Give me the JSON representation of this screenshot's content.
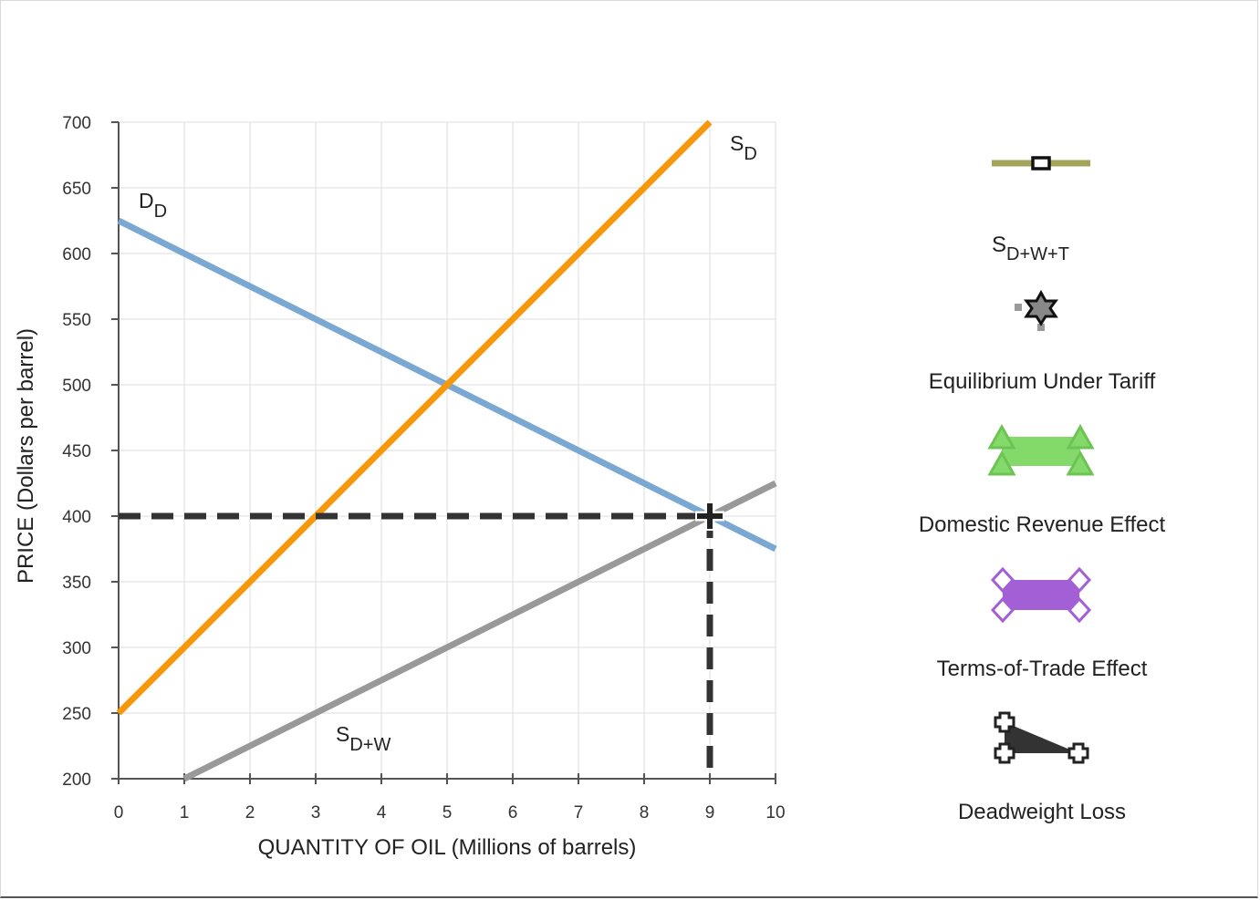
{
  "chart_data": {
    "type": "line",
    "xlabel": "QUANTITY OF OIL (Millions of barrels)",
    "ylabel": "PRICE (Dollars per barrel)",
    "xlim": [
      0,
      10
    ],
    "ylim": [
      200,
      700
    ],
    "xticks": [
      "0",
      "1",
      "2",
      "3",
      "4",
      "5",
      "6",
      "7",
      "8",
      "9",
      "10"
    ],
    "yticks": [
      "200",
      "250",
      "300",
      "350",
      "400",
      "450",
      "500",
      "550",
      "600",
      "650",
      "700"
    ],
    "grid": true,
    "series": [
      {
        "name": "D",
        "sub": "D",
        "color": "#7ba7d3",
        "x": [
          0,
          10
        ],
        "y": [
          625,
          375
        ]
      },
      {
        "name": "S",
        "sub": "D",
        "color": "#f5980a",
        "x": [
          0,
          9
        ],
        "y": [
          250,
          700
        ]
      },
      {
        "name": "S",
        "sub": "D+W",
        "color": "#999999",
        "x": [
          1,
          10
        ],
        "y": [
          200,
          425
        ]
      }
    ],
    "dashed_lines": {
      "color": "#333333",
      "price_level": 400,
      "quantity_level": 9
    },
    "equilibrium_point": {
      "x": 9,
      "y": 400
    }
  },
  "legend": {
    "items": [
      {
        "label": "S",
        "sub": "D+W+T",
        "marker": "olive-line-with-square",
        "color": "#a3a35a"
      },
      {
        "label": "Equilibrium Under Tariff",
        "marker": "star-icon",
        "color": "#333333"
      },
      {
        "label": "Domestic Revenue Effect",
        "marker": "green-polygon-triangles",
        "color": "#84d96b"
      },
      {
        "label": "Terms-of-Trade Effect",
        "marker": "purple-polygon-diamonds",
        "color": "#a35fd6"
      },
      {
        "label": "Deadweight Loss",
        "marker": "black-triangle-crosses",
        "color": "#333333"
      }
    ]
  }
}
